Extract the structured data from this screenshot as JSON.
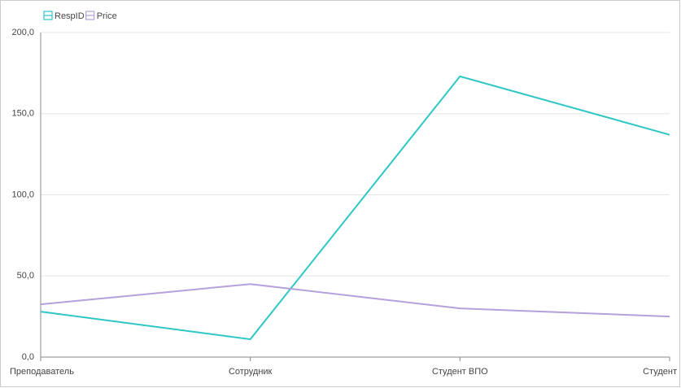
{
  "chart_data": {
    "type": "line",
    "categories": [
      "Преподаватель",
      "Сотрудник",
      "Студент ВПО",
      "Студент"
    ],
    "series": [
      {
        "name": "RespID",
        "color": "#2ec7c4",
        "values": [
          28,
          11,
          173,
          137
        ]
      },
      {
        "name": "Price",
        "color": "#b5a0dc",
        "values": [
          32.5,
          45,
          30,
          25
        ]
      }
    ],
    "ylim": [
      0,
      200
    ],
    "yticks": [
      {
        "value": 0,
        "label": "0,0"
      },
      {
        "value": 50,
        "label": "50,0"
      },
      {
        "value": 100,
        "label": "100,0"
      },
      {
        "value": 150,
        "label": "150,0"
      },
      {
        "value": 200,
        "label": "200,0"
      }
    ],
    "grid": true
  }
}
